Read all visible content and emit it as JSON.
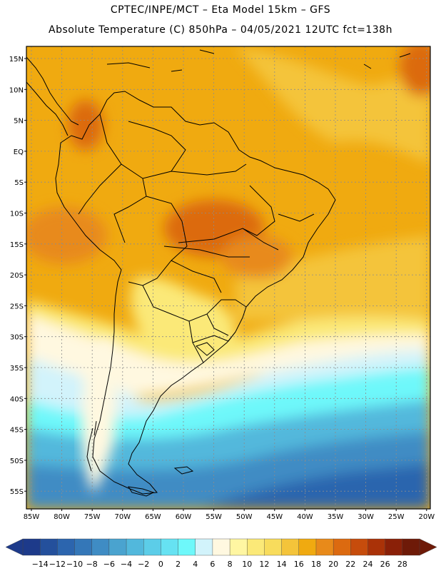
{
  "header": {
    "line1": "CPTEC/INPE/MCT  –  Eta Model 15km  –  GFS",
    "line2": "Absolute Temperature (C) 850hPa – 04/05/2021 12UTC fct=138h"
  },
  "axes": {
    "lat_labels": [
      "15N",
      "10N",
      "5N",
      "EQ",
      "5S",
      "10S",
      "15S",
      "20S",
      "25S",
      "30S",
      "35S",
      "40S",
      "45S",
      "50S",
      "55S"
    ],
    "lon_labels": [
      "85W",
      "80W",
      "75W",
      "70W",
      "65W",
      "60W",
      "55W",
      "50W",
      "45W",
      "40W",
      "35W",
      "30W",
      "25W",
      "20W"
    ]
  },
  "colorbar": {
    "labels": [
      "-14",
      "-12",
      "-10",
      "-8",
      "-6",
      "-4",
      "-2",
      "0",
      "2",
      "4",
      "6",
      "8",
      "10",
      "12",
      "14",
      "16",
      "18",
      "20",
      "22",
      "24",
      "26",
      "28"
    ],
    "colors": [
      "#1d3a8a",
      "#24509c",
      "#2c65ae",
      "#3477b8",
      "#3f8cc4",
      "#4aa3cf",
      "#52b8dc",
      "#5ccde8",
      "#66e2f2",
      "#6ef8fa",
      "#d2f3fb",
      "#fff8e0",
      "#fff6a2",
      "#fbe978",
      "#f8dc5c",
      "#f4c43a",
      "#f0aa10",
      "#e88a1a",
      "#dc6a10",
      "#c64c0c",
      "#aa3208",
      "#8a2008",
      "#6e1a08"
    ],
    "arrow_left_color": "#1d3a8a",
    "arrow_right_color": "#6e1a08"
  },
  "field_colors": {
    "hot": "#dc6a10",
    "warm": "#e88a1a",
    "orange": "#f0aa10",
    "yellow": "#f4c43a",
    "light_yellow": "#fbe978",
    "cream": "#fff8e0",
    "pale_cyan": "#d2f3fb",
    "cyan": "#6ef8fa",
    "blue_light": "#52b8dc",
    "blue_mid": "#3f8cc4",
    "blue_dark": "#2c65ae",
    "coast": "#000000",
    "grid": "#8c8c8c"
  }
}
